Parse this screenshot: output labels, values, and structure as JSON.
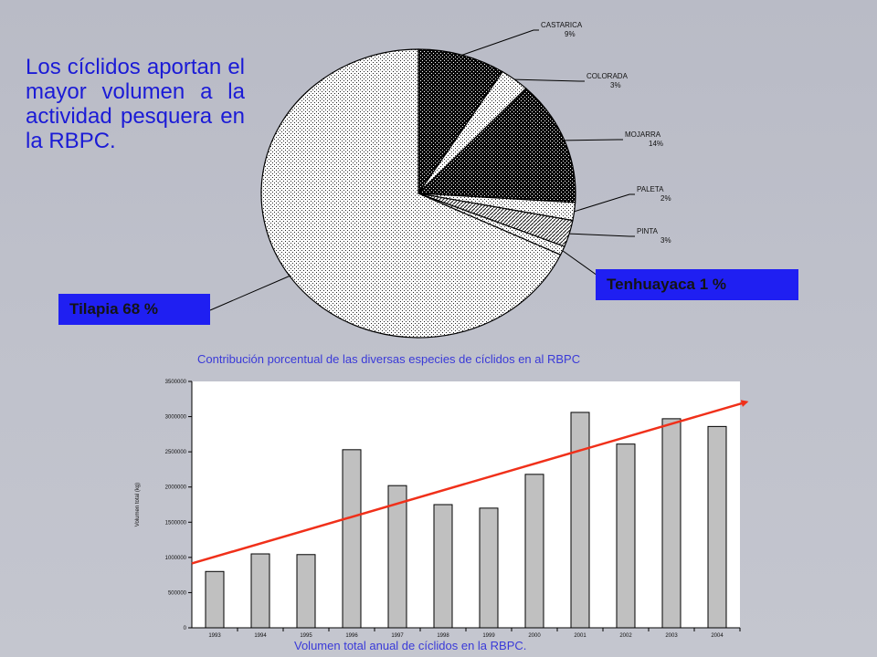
{
  "intro_text": "Los cíclidos aportan el mayor volumen a la actividad pesquera en la RBPC.",
  "colors": {
    "text_blue": "#1b1bd6",
    "box_blue": "#1f1ff2",
    "bar_fill": "#c0c0c0",
    "trend": "#f0301a"
  },
  "chart_data": [
    {
      "type": "pie",
      "title": "Contribución porcentual de las diversas especies de cíclidos en al RBPC",
      "slices": [
        {
          "name": "CASTARICA",
          "value": 9,
          "label": "9%",
          "pattern": "dots-dark"
        },
        {
          "name": "COLORADA",
          "value": 3,
          "label": "3%",
          "pattern": "dots-light"
        },
        {
          "name": "MOJARRA",
          "value": 14,
          "label": "14%",
          "pattern": "dots-dark"
        },
        {
          "name": "PALETA",
          "value": 2,
          "label": "2%",
          "pattern": "dots-light"
        },
        {
          "name": "PINTA",
          "value": 3,
          "label": "3%",
          "pattern": "hatch"
        },
        {
          "name": "Tenhuayaca",
          "value": 1,
          "label": "Tenhuayaca 1 %",
          "pattern": "dots-light"
        },
        {
          "name": "Tilapia",
          "value": 68,
          "label": "Tilapia 68 %",
          "pattern": "dots-light"
        }
      ]
    },
    {
      "type": "bar",
      "title": "Volumen total anual de cíclidos en la RBPC.",
      "ylabel": "Volumen total (kg)",
      "categories": [
        "1993",
        "1994",
        "1995",
        "1996",
        "1997",
        "1998",
        "1999",
        "2000",
        "2001",
        "2002",
        "2003",
        "2004"
      ],
      "values": [
        800000,
        1050000,
        1040000,
        2530000,
        2020000,
        1750000,
        1700000,
        2180000,
        3060000,
        2610000,
        2970000,
        2860000
      ],
      "ylim": [
        0,
        3500000
      ],
      "yticks": [
        {
          "value": 0,
          "label": "0"
        },
        {
          "value": 500000,
          "label": "500000"
        },
        {
          "value": 1000000,
          "label": "1000000"
        },
        {
          "value": 1500000,
          "label": "1500000"
        },
        {
          "value": 2000000,
          "label": "2000000"
        },
        {
          "value": 2500000,
          "label": "2500000"
        },
        {
          "value": 3000000,
          "label": "3000000"
        },
        {
          "value": 3500000,
          "label": "3500000"
        }
      ],
      "trend_line": true
    }
  ]
}
